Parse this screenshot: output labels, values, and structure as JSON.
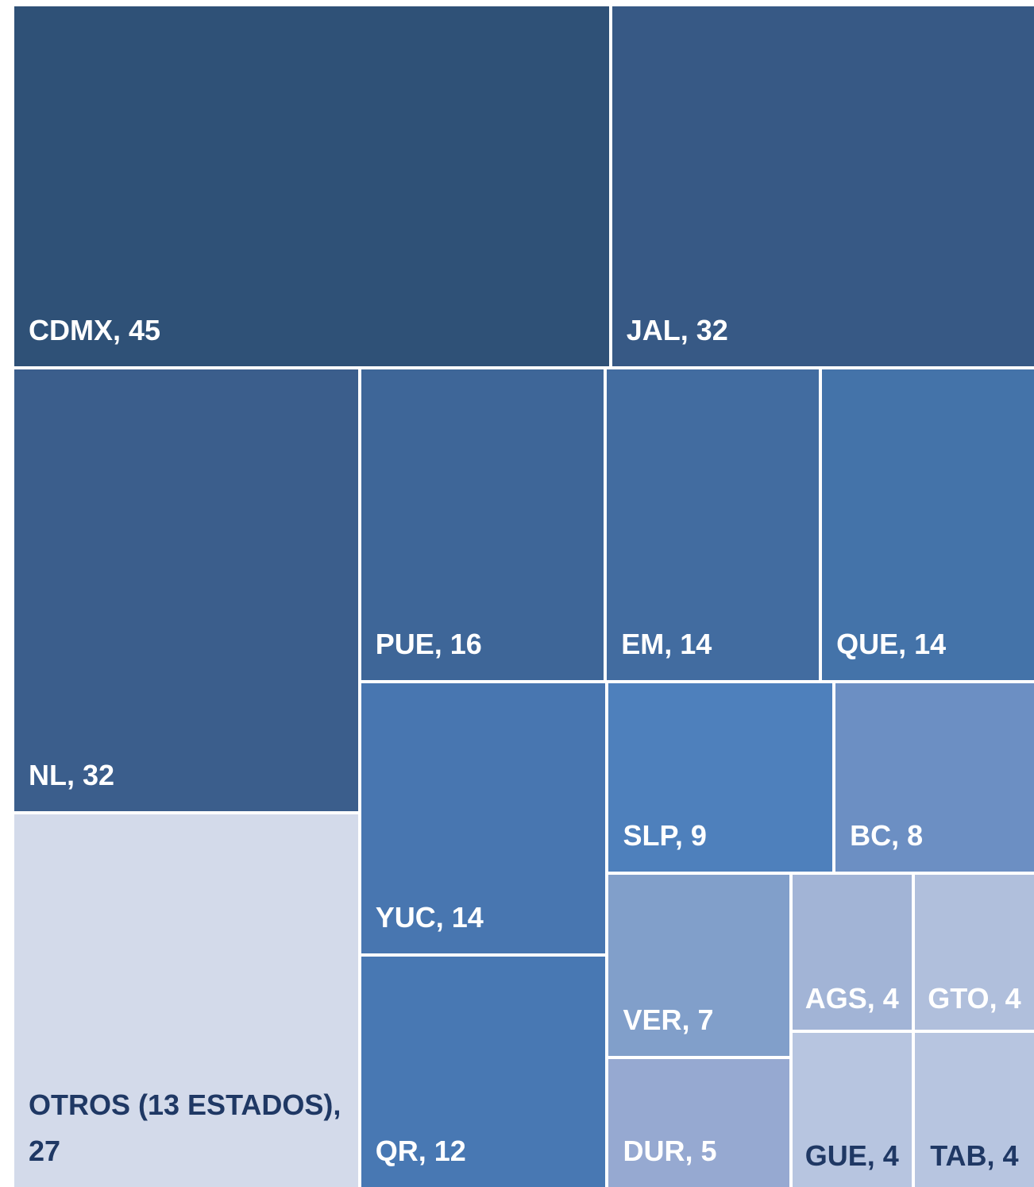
{
  "chart_data": {
    "type": "treemap",
    "labels": [
      "CDMX, 45",
      "JAL, 32",
      "NL, 32",
      "OTROS (13 ESTADOS), 27",
      "PUE, 16",
      "EM, 14",
      "QUE, 14",
      "YUC, 14",
      "QR, 12",
      "SLP, 9",
      "BC, 8",
      "VER, 7",
      "DUR, 5",
      "AGS, 4",
      "GUE, 4",
      "GTO, 4",
      "TAB, 4"
    ],
    "values": [
      45,
      32,
      32,
      27,
      16,
      14,
      14,
      14,
      12,
      9,
      8,
      7,
      5,
      4,
      4,
      4,
      4
    ],
    "colors": [
      "#2f5177",
      "#375985",
      "#3b5e8c",
      "#d3daea",
      "#3e6698",
      "#426ca0",
      "#4473a9",
      "#4876b0",
      "#4878b3",
      "#4e80bc",
      "#6c8fc3",
      "#819fca",
      "#96a9d1",
      "#a2b4d6",
      "#b7c5e0",
      "#b0bfdc",
      "#b7c5e0"
    ]
  }
}
